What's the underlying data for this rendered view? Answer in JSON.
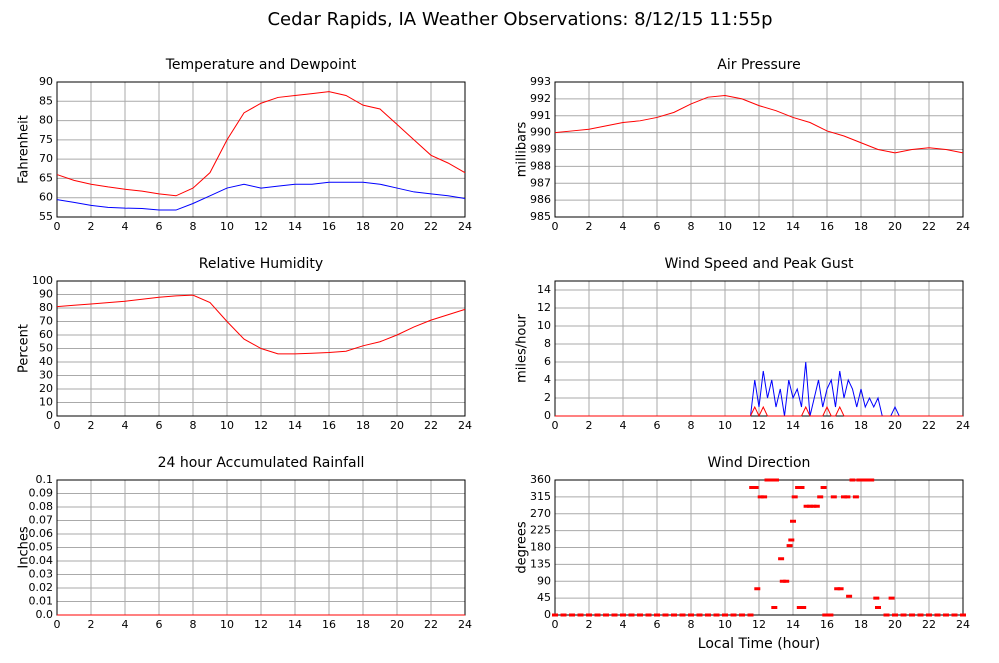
{
  "title": "Cedar Rapids, IA Weather Observations: 8/12/15 11:55p",
  "chart_data": [
    {
      "type": "line",
      "title": "Temperature and Dewpoint",
      "ylabel": "Fahrenheit",
      "x": [
        0,
        1,
        2,
        3,
        4,
        5,
        6,
        7,
        8,
        9,
        10,
        11,
        12,
        13,
        14,
        15,
        16,
        17,
        18,
        19,
        20,
        21,
        22,
        23,
        24
      ],
      "series": [
        {
          "color": "#ff0000",
          "values": [
            66,
            64.5,
            63.5,
            62.8,
            62.2,
            61.7,
            61,
            60.5,
            62.5,
            66.5,
            75,
            82,
            84.5,
            86,
            86.5,
            87,
            87.5,
            86.5,
            84,
            83,
            79,
            75,
            71,
            69,
            66.5
          ]
        },
        {
          "color": "#0000ff",
          "values": [
            59.5,
            58.8,
            58,
            57.5,
            57.3,
            57.2,
            56.8,
            56.8,
            58.5,
            60.5,
            62.5,
            63.5,
            62.5,
            63,
            63.5,
            63.5,
            64,
            64,
            64,
            63.5,
            62.5,
            61.5,
            61,
            60.5,
            59.8
          ]
        }
      ],
      "xlim": [
        0,
        24
      ],
      "xticks": [
        0,
        2,
        4,
        6,
        8,
        10,
        12,
        14,
        16,
        18,
        20,
        22,
        24
      ],
      "ylim": [
        55,
        90
      ],
      "yticks": [
        55,
        60,
        65,
        70,
        75,
        80,
        85,
        90
      ],
      "grid": true
    },
    {
      "type": "line",
      "title": "Air Pressure",
      "ylabel": "millibars",
      "x": [
        0,
        1,
        2,
        3,
        4,
        5,
        6,
        7,
        8,
        9,
        10,
        11,
        12,
        13,
        14,
        15,
        16,
        17,
        18,
        19,
        20,
        21,
        22,
        23,
        24
      ],
      "series": [
        {
          "color": "#ff0000",
          "values": [
            990,
            990.1,
            990.2,
            990.4,
            990.6,
            990.7,
            990.9,
            991.2,
            991.7,
            992.1,
            992.2,
            992,
            991.6,
            991.3,
            990.9,
            990.6,
            990.1,
            989.8,
            989.4,
            989,
            988.8,
            989,
            989.1,
            989,
            988.8
          ]
        }
      ],
      "xlim": [
        0,
        24
      ],
      "xticks": [
        0,
        2,
        4,
        6,
        8,
        10,
        12,
        14,
        16,
        18,
        20,
        22,
        24
      ],
      "ylim": [
        985,
        993
      ],
      "yticks": [
        985,
        986,
        987,
        988,
        989,
        990,
        991,
        992,
        993
      ],
      "grid": true
    },
    {
      "type": "line",
      "title": "Relative Humidity",
      "ylabel": "Percent",
      "x": [
        0,
        1,
        2,
        3,
        4,
        5,
        6,
        7,
        8,
        9,
        10,
        11,
        12,
        13,
        14,
        15,
        16,
        17,
        18,
        19,
        20,
        21,
        22,
        23,
        24
      ],
      "series": [
        {
          "color": "#ff0000",
          "values": [
            81,
            82,
            83,
            84,
            85,
            86.5,
            88,
            89,
            89.5,
            84,
            70,
            57,
            50,
            46,
            46,
            46.5,
            47,
            48,
            52,
            55,
            60,
            66,
            71,
            75,
            79
          ]
        }
      ],
      "xlim": [
        0,
        24
      ],
      "xticks": [
        0,
        2,
        4,
        6,
        8,
        10,
        12,
        14,
        16,
        18,
        20,
        22,
        24
      ],
      "ylim": [
        0,
        100
      ],
      "yticks": [
        0,
        10,
        20,
        30,
        40,
        50,
        60,
        70,
        80,
        90,
        100
      ],
      "grid": true
    },
    {
      "type": "line",
      "title": "Wind Speed and Peak Gust",
      "ylabel": "miles/hour",
      "x": [
        0,
        11.5,
        11.75,
        12,
        12.25,
        12.5,
        12.75,
        13,
        13.25,
        13.5,
        13.75,
        14,
        14.25,
        14.5,
        14.75,
        15,
        15.25,
        15.5,
        15.75,
        16,
        16.25,
        16.5,
        16.75,
        17,
        17.25,
        17.5,
        17.75,
        18,
        18.25,
        18.5,
        18.75,
        19,
        19.25,
        19.5,
        19.75,
        20,
        20.25,
        24
      ],
      "series": [
        {
          "color": "#0000ff",
          "values": [
            0,
            0,
            4,
            1,
            5,
            2,
            4,
            1,
            3,
            0,
            4,
            2,
            3,
            1,
            6,
            0,
            2,
            4,
            1,
            3,
            4,
            1,
            5,
            2,
            4,
            3,
            1,
            3,
            1,
            2,
            1,
            2,
            0,
            0,
            0,
            1,
            0,
            0
          ]
        },
        {
          "color": "#ff0000",
          "values": [
            0,
            0,
            1,
            0,
            1,
            0,
            0,
            0,
            0,
            0,
            0,
            0,
            0,
            0,
            1,
            0,
            0,
            0,
            0,
            1,
            0,
            0,
            1,
            0,
            0,
            0,
            0,
            0,
            0,
            0,
            0,
            0,
            0,
            0,
            0,
            0,
            0,
            0
          ]
        }
      ],
      "xlim": [
        0,
        24
      ],
      "xticks": [
        0,
        2,
        4,
        6,
        8,
        10,
        12,
        14,
        16,
        18,
        20,
        22,
        24
      ],
      "ylim": [
        0,
        15
      ],
      "yticks": [
        0,
        2,
        4,
        6,
        8,
        10,
        12,
        14
      ],
      "grid": true
    },
    {
      "type": "line",
      "title": "24 hour Accumulated Rainfall",
      "ylabel": "Inches",
      "x": [
        0,
        24
      ],
      "series": [
        {
          "color": "#ff0000",
          "values": [
            0,
            0
          ]
        }
      ],
      "xlim": [
        0,
        24
      ],
      "xticks": [
        0,
        2,
        4,
        6,
        8,
        10,
        12,
        14,
        16,
        18,
        20,
        22,
        24
      ],
      "ylim": [
        0,
        0.1
      ],
      "yticks": [
        {
          "value": 0,
          "label": "0.0"
        },
        0.01,
        0.02,
        0.03,
        0.04,
        0.05,
        0.06,
        0.07,
        0.08,
        0.09,
        0.1
      ],
      "grid": true
    },
    {
      "type": "scatter",
      "title": "Wind Direction",
      "ylabel": "degrees",
      "xlabel": "Local Time (hour)",
      "x": [
        0,
        0.5,
        1,
        1.5,
        2,
        2.5,
        3,
        3.5,
        4,
        4.5,
        5,
        5.5,
        6,
        6.5,
        7,
        7.5,
        8,
        8.5,
        9,
        9.5,
        10,
        10.5,
        11,
        11.5,
        11.6,
        11.8,
        11.9,
        12.1,
        12.3,
        12.5,
        12.8,
        13,
        12.9,
        13.3,
        13.4,
        13.6,
        13.8,
        13.9,
        14,
        14.1,
        14.3,
        14.5,
        14.4,
        14.6,
        14.8,
        15,
        15.2,
        15.4,
        15.6,
        15.8,
        15.9,
        16.2,
        16.4,
        16.6,
        16.8,
        17,
        17.2,
        17.3,
        17.5,
        17.7,
        17.9,
        18.1,
        18.4,
        18.6,
        18.9,
        19,
        19.5,
        19.8,
        20,
        20.5,
        21,
        21.5,
        22,
        22.5,
        23,
        23.5,
        24
      ],
      "series": [
        {
          "color": "#ff0000",
          "values": [
            0,
            0,
            0,
            0,
            0,
            0,
            0,
            0,
            0,
            0,
            0,
            0,
            0,
            0,
            0,
            0,
            0,
            0,
            0,
            0,
            0,
            0,
            0,
            0,
            340,
            340,
            70,
            315,
            315,
            360,
            360,
            360,
            20,
            150,
            90,
            90,
            185,
            200,
            250,
            315,
            340,
            340,
            20,
            20,
            290,
            290,
            290,
            290,
            315,
            340,
            0,
            0,
            315,
            70,
            70,
            315,
            315,
            50,
            360,
            315,
            360,
            360,
            360,
            360,
            45,
            20,
            0,
            45,
            0,
            0,
            0,
            0,
            0,
            0,
            0,
            0,
            0
          ]
        }
      ],
      "xlim": [
        0,
        24
      ],
      "xticks": [
        0,
        2,
        4,
        6,
        8,
        10,
        12,
        14,
        16,
        18,
        20,
        22,
        24
      ],
      "ylim": [
        0,
        360
      ],
      "yticks": [
        0,
        45,
        90,
        135,
        180,
        225,
        270,
        315,
        360
      ],
      "grid": true
    }
  ]
}
